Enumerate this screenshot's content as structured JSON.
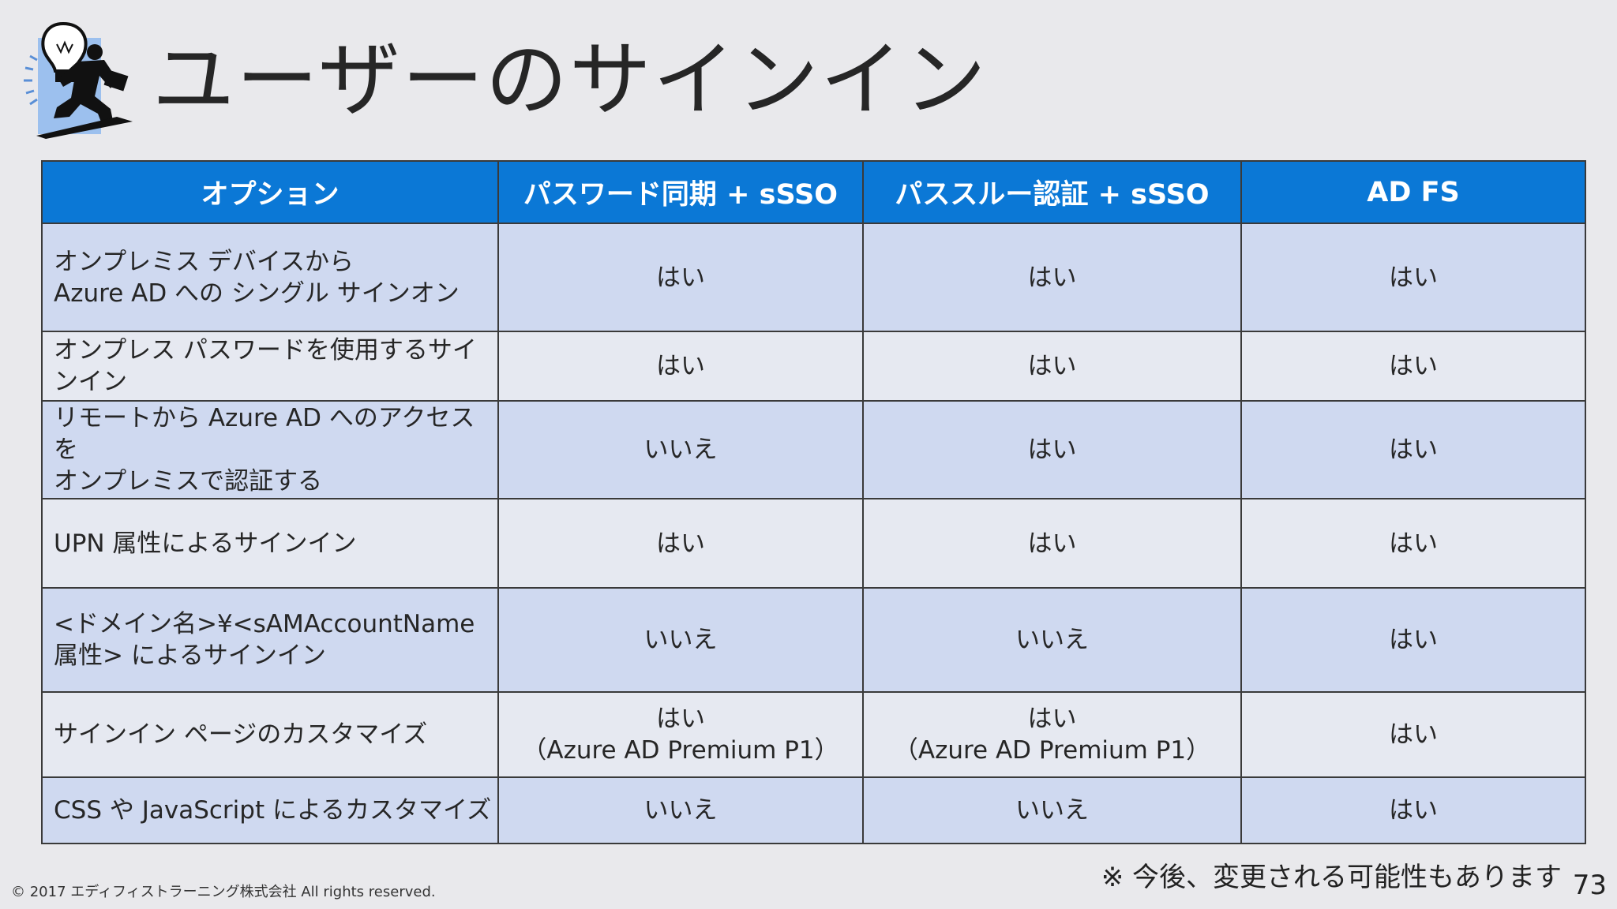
{
  "slide": {
    "title": "ユーザーのサインイン",
    "note": "※ 今後、変更される可能性もあります",
    "page_number": "73",
    "copyright": "© 2017 エディフィストラーニング株式会社 All rights reserved."
  },
  "logo": {
    "icon": "lightbulb-businessman-icon"
  },
  "table": {
    "headers": [
      "オプション",
      "パスワード同期 + sSSO",
      "パススルー認証 + sSSO",
      "AD FS"
    ],
    "rows": [
      {
        "option": [
          "オンプレミス デバイスから",
          "Azure AD への シングル サインオン"
        ],
        "cells": [
          [
            "はい"
          ],
          [
            "はい"
          ],
          [
            "はい"
          ]
        ]
      },
      {
        "option": [
          "オンプレス パスワードを使用するサインイン"
        ],
        "cells": [
          [
            "はい"
          ],
          [
            "はい"
          ],
          [
            "はい"
          ]
        ]
      },
      {
        "option": [
          "リモートから Azure AD へのアクセスを",
          "オンプレミスで認証する"
        ],
        "cells": [
          [
            "いいえ"
          ],
          [
            "はい"
          ],
          [
            "はい"
          ]
        ]
      },
      {
        "option": [
          "UPN 属性によるサインイン"
        ],
        "cells": [
          [
            "はい"
          ],
          [
            "はい"
          ],
          [
            "はい"
          ]
        ]
      },
      {
        "option": [
          "<ドメイン名>¥<sAMAccountName",
          "属性> によるサインイン"
        ],
        "cells": [
          [
            "いいえ"
          ],
          [
            "いいえ"
          ],
          [
            "はい"
          ]
        ]
      },
      {
        "option": [
          "サインイン ページのカスタマイズ"
        ],
        "cells": [
          [
            "はい",
            "（Azure AD Premium P1）"
          ],
          [
            "はい",
            "（Azure AD Premium P1）"
          ],
          [
            "はい"
          ]
        ]
      },
      {
        "option": [
          "CSS や JavaScript によるカスタマイズ"
        ],
        "cells": [
          [
            "いいえ"
          ],
          [
            "いいえ"
          ],
          [
            "はい"
          ]
        ]
      }
    ]
  },
  "colors": {
    "header": "#0b78d6",
    "row_dark": "#cfd9f0",
    "row_light": "#e6e9f1",
    "background": "#e9e9ec"
  }
}
